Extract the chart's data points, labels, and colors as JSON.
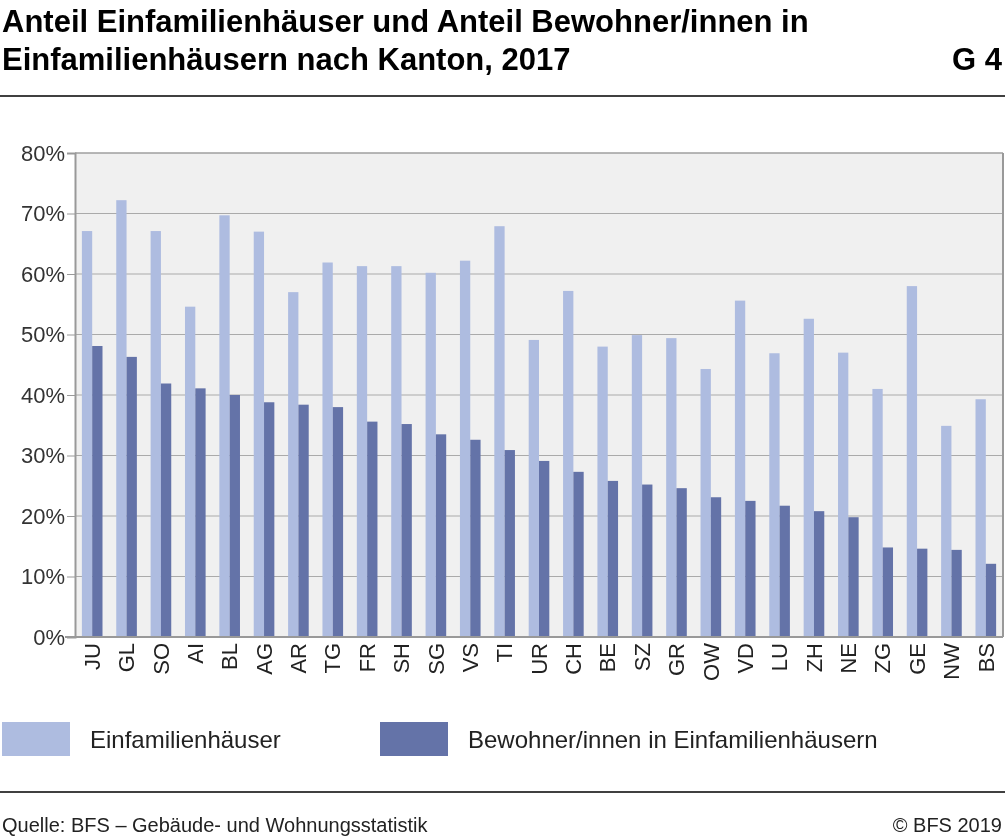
{
  "chart_data": {
    "type": "bar",
    "title": "Anteil Einfamilienhäuser und Anteil Bewohner/innen in Einfamilienhäusern nach Kanton, 2017",
    "categories": [
      "JU",
      "GL",
      "SO",
      "AI",
      "BL",
      "AG",
      "AR",
      "TG",
      "FR",
      "SH",
      "SG",
      "VS",
      "TI",
      "UR",
      "CH",
      "BE",
      "SZ",
      "GR",
      "OW",
      "VD",
      "LU",
      "ZH",
      "NE",
      "ZG",
      "GE",
      "NW",
      "BS"
    ],
    "series": [
      {
        "name": "Einfamilienhäuser",
        "color": "#aebce0",
        "values": [
          67.1,
          72.2,
          67.1,
          54.6,
          69.7,
          67.0,
          57.0,
          61.9,
          61.3,
          61.3,
          60.2,
          62.2,
          67.9,
          49.1,
          57.2,
          48.0,
          49.9,
          49.4,
          44.3,
          55.6,
          46.9,
          52.6,
          47.0,
          41.0,
          58.0,
          34.9,
          39.3
        ]
      },
      {
        "name": "Bewohner/innen in Einfamilienhäusern",
        "color": "#6473a8",
        "values": [
          48.1,
          46.3,
          41.9,
          41.1,
          40.0,
          38.8,
          38.4,
          38.0,
          35.6,
          35.2,
          33.5,
          32.6,
          30.9,
          29.1,
          27.3,
          25.8,
          25.2,
          24.6,
          23.1,
          22.5,
          21.7,
          20.8,
          19.8,
          14.8,
          14.6,
          14.4,
          12.1
        ]
      }
    ],
    "ylim": [
      0,
      80
    ],
    "yticks": [
      {
        "value": 0,
        "label": "0%"
      },
      {
        "value": 10,
        "label": "10%"
      },
      {
        "value": 20,
        "label": "20%"
      },
      {
        "value": 30,
        "label": "30%"
      },
      {
        "value": 40,
        "label": "40%"
      },
      {
        "value": 50,
        "label": "50%"
      },
      {
        "value": 60,
        "label": "60%"
      },
      {
        "value": 70,
        "label": "70%"
      },
      {
        "value": 80,
        "label": "80%"
      }
    ],
    "grid": "y",
    "legend": "bottom",
    "annotations": [
      "G 4",
      "Quelle: BFS – Gebäude- und Wohnungsstatistik",
      "© BFS 2019"
    ]
  }
}
